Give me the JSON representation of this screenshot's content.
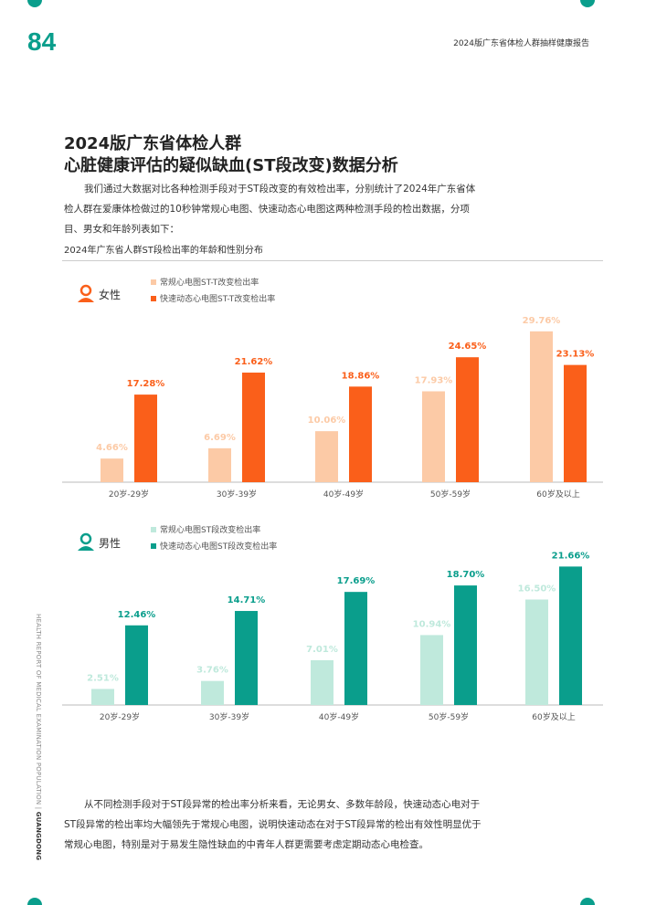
{
  "page_number": "84",
  "header": "2024版广东省体检人群抽样健康报告",
  "title_line1": "2024版广东省体检人群",
  "title_line2": "心脏健康评估的疑似缺血(ST段改变)数据分析",
  "intro": "我们通过大数据对比各种检测手段对于ST段改变的有效检出率，分别统计了2024年广东省体检人群在爱康体检做过的10秒钟常规心电图、快速动态心电图这两种检测手段的检出数据，分项目、男女和年龄列表如下：",
  "chart_subtitle": "2024年广东省人群ST段检出率的年龄和性别分布",
  "side_text": "HEALTH REPORT OF MEDICAL EXAMINATION POPULATION",
  "side_text_bold": "GUANGDONG",
  "outro": "从不同检测手段对于ST段异常的检出率分析来看，无论男女、多数年龄段，快速动态心电对于ST段异常的检出率均大幅领先于常规心电图，说明快速动态在对于ST段异常的检出有效性明显优于常规心电图，特别是对于易发生隐性缺血的中青年人群更需要考虑定期动态心电检查。",
  "chart_data": [
    {
      "type": "bar",
      "group": "女性",
      "categories": [
        "20岁-29岁",
        "30岁-39岁",
        "40岁-49岁",
        "50岁-59岁",
        "60岁及以上"
      ],
      "series": [
        {
          "name": "常规心电图ST-T改变检出率",
          "values": [
            4.66,
            6.69,
            10.06,
            17.93,
            29.76
          ],
          "labels": [
            "4.66%",
            "6.69%",
            "10.06%",
            "17.93%",
            "29.76%"
          ],
          "color": "#fccaa6"
        },
        {
          "name": "快速动态心电图ST-T改变检出率",
          "values": [
            17.28,
            21.62,
            18.86,
            24.65,
            23.13
          ],
          "labels": [
            "17.28%",
            "21.62%",
            "18.86%",
            "24.65%",
            "23.13%"
          ],
          "color": "#fa5f1a"
        }
      ],
      "ylim": [
        0,
        30
      ]
    },
    {
      "type": "bar",
      "group": "男性",
      "categories": [
        "20岁-29岁",
        "30岁-39岁",
        "40岁-49岁",
        "50岁-59岁",
        "60岁及以上"
      ],
      "series": [
        {
          "name": "常规心电图ST段改变检出率",
          "values": [
            2.51,
            3.76,
            7.01,
            10.94,
            16.5
          ],
          "labels": [
            "2.51%",
            "3.76%",
            "7.01%",
            "10.94%",
            "16.50%"
          ],
          "color": "#bfe9dc"
        },
        {
          "name": "快速动态心电图ST段改变检出率",
          "values": [
            12.46,
            14.71,
            17.69,
            18.7,
            21.66
          ],
          "labels": [
            "12.46%",
            "14.71%",
            "17.69%",
            "18.70%",
            "21.66%"
          ],
          "color": "#0a9e8c"
        }
      ],
      "ylim": [
        0,
        22
      ]
    }
  ]
}
